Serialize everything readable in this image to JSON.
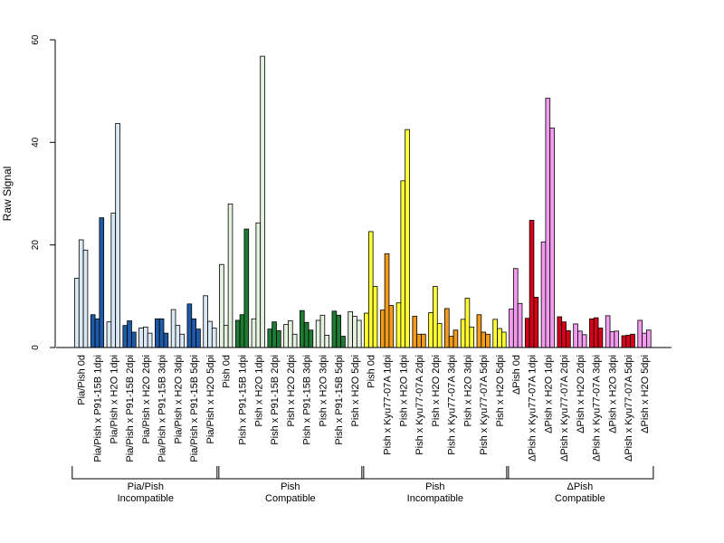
{
  "chart_data": {
    "type": "bar",
    "ylabel": "Raw Signal",
    "ylim": [
      0,
      60
    ],
    "yticks": [
      0,
      20,
      40,
      60
    ],
    "grid": false,
    "legend": "none",
    "categories": [
      "Pia/Pish 0d",
      "Pia/Pish x P91-15B 1dpi",
      "Pia/Pish x H2O 1dpi",
      "Pia/Pish x P91-15B 2dpi",
      "Pia/Pish x H2O 2dpi",
      "Pia/Pish x P91-15B 3dpi",
      "Pia/Pish x H2O 3dpi",
      "Pia/Pish x P91-15B 5dpi",
      "Pia/Pish x H2O 5dpi",
      "Pish 0d",
      "Pish x P91-15B 1dpi",
      "Pish x H2O 1dpi",
      "Pish x P91-15B 2dpi",
      "Pish x H2O 2dpi",
      "Pish x P91-15B 3dpi",
      "Pish x H2O 3dpi",
      "Pish x P91-15B 5dpi",
      "Pish x H2O 5dpi",
      "Pish 0d",
      "Pish x Kyu77-07A 1dpi",
      "Pish x H2O 1dpi",
      "Pish x Kyu77-07A 2dpi",
      "Pish x H2O 2dpi",
      "Pish x Kyu77-07A 3dpi",
      "Pish x H2O 3dpi",
      "Pish x Kyu77-07A 5dpi",
      "Pish x H2O 5dpi",
      "ΔPish 0d",
      "ΔPish x Kyu77-07A 1dpi",
      "ΔPish x H2O 1dpi",
      "ΔPish x Kyu77-07A 2dpi",
      "ΔPish x H2O 2dpi",
      "ΔPish x Kyu77-07A 3dpi",
      "ΔPish x H2O 3dpi",
      "ΔPish x Kyu77-07A 5dpi",
      "ΔPish x H2O 5dpi"
    ],
    "values": [
      [
        13.5,
        21.0,
        19.0
      ],
      [
        6.4,
        5.6,
        25.3
      ],
      [
        5.0,
        26.2,
        43.7
      ],
      [
        4.3,
        5.2,
        3.0
      ],
      [
        3.8,
        4.0,
        2.8
      ],
      [
        5.6,
        5.6,
        2.8
      ],
      [
        7.4,
        4.3,
        2.6
      ],
      [
        8.5,
        5.6,
        3.6
      ],
      [
        10.1,
        5.1,
        3.8
      ],
      [
        16.2,
        4.3,
        28.0
      ],
      [
        5.3,
        6.4,
        23.1
      ],
      [
        5.6,
        24.3,
        56.8
      ],
      [
        3.6,
        5.0,
        3.3
      ],
      [
        4.5,
        5.2,
        2.6
      ],
      [
        7.2,
        4.9,
        3.4
      ],
      [
        5.3,
        6.3,
        2.4
      ],
      [
        7.1,
        6.3,
        2.2
      ],
      [
        7.0,
        6.1,
        5.3
      ],
      [
        6.7,
        22.6,
        11.9
      ],
      [
        7.3,
        18.3,
        8.2
      ],
      [
        8.7,
        32.5,
        42.5
      ],
      [
        6.1,
        2.6,
        2.6
      ],
      [
        6.8,
        11.9,
        4.7
      ],
      [
        7.6,
        2.2,
        3.4
      ],
      [
        5.5,
        9.6,
        4.0
      ],
      [
        6.4,
        3.0,
        2.6
      ],
      [
        5.5,
        3.7,
        3.0
      ],
      [
        7.5,
        15.4,
        8.6
      ],
      [
        5.7,
        24.8,
        9.8
      ],
      [
        20.6,
        48.6,
        42.8
      ],
      [
        6.0,
        5.0,
        3.3
      ],
      [
        4.6,
        3.2,
        2.5
      ],
      [
        5.6,
        5.8,
        3.8
      ],
      [
        6.2,
        3.1,
        3.2
      ],
      [
        2.3,
        2.4,
        2.6
      ],
      [
        5.3,
        2.8,
        3.4
      ]
    ],
    "colors": [
      "#dbe8f5",
      "#1e5aa8",
      "#dbe8f5",
      "#1e5aa8",
      "#dbe8f5",
      "#1e5aa8",
      "#dbe8f5",
      "#1e5aa8",
      "#dbe8f5",
      "#e3f1de",
      "#1f7a34",
      "#e3f1de",
      "#1f7a34",
      "#e3f1de",
      "#1f7a34",
      "#e3f1de",
      "#1f7a34",
      "#e3f1de",
      "#ffff33",
      "#f39c1b",
      "#ffff33",
      "#f39c1b",
      "#ffff33",
      "#f39c1b",
      "#ffff33",
      "#f39c1b",
      "#ffff33",
      "#f29bef",
      "#d7001a",
      "#f29bef",
      "#d7001a",
      "#f29bef",
      "#d7001a",
      "#f29bef",
      "#d7001a",
      "#f29bef"
    ],
    "groups": [
      {
        "line1": "Pia/Pish",
        "line2": "Incompatible",
        "count": 9
      },
      {
        "line1": "Pish",
        "line2": "Compatible",
        "count": 9
      },
      {
        "line1": "Pish",
        "line2": "Incompatible",
        "count": 9
      },
      {
        "line1": "ΔPish",
        "line2": "Compatible",
        "count": 9
      }
    ]
  }
}
